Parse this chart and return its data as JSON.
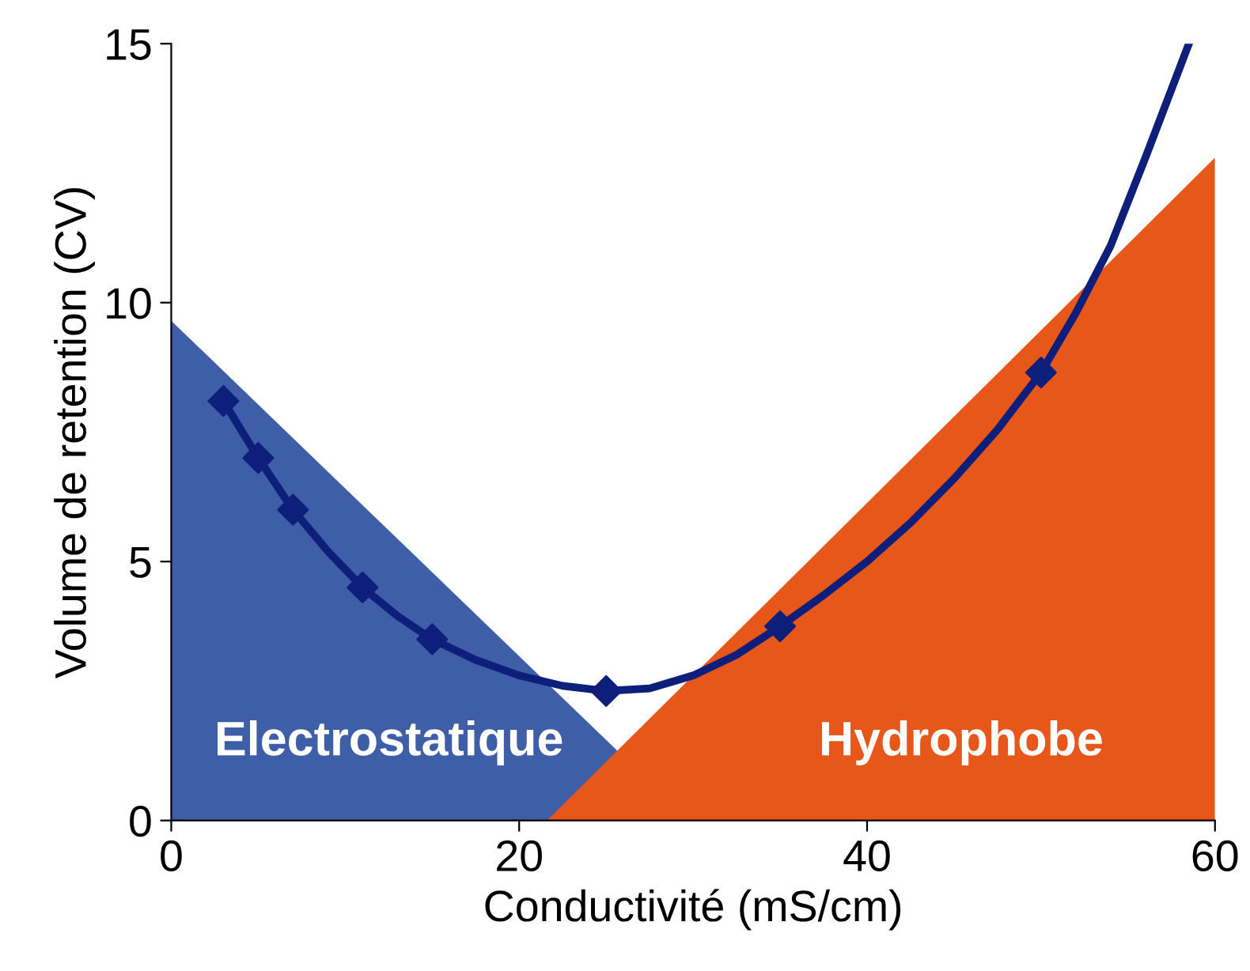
{
  "chart_data": {
    "type": "line",
    "xlabel": "Conductivité (mS/cm)",
    "ylabel": "Volume de retention (CV)",
    "xlim": [
      0,
      60
    ],
    "ylim": [
      0,
      15
    ],
    "xticks": [
      0,
      20,
      40,
      60
    ],
    "yticks": [
      0,
      5,
      10,
      15
    ],
    "grid": false,
    "legend": false,
    "series": [
      {
        "name": "Electrostatique",
        "type": "area",
        "color": "#3f5ea8",
        "x": [
          0,
          29.8
        ],
        "values": [
          9.65,
          0
        ]
      },
      {
        "name": "Hydrophobe",
        "type": "area",
        "color": "#e8571a",
        "x": [
          21.6,
          60
        ],
        "values": [
          0,
          12.8
        ]
      },
      {
        "color": "#0d1f7a",
        "marker": "none",
        "x": [
          3,
          5,
          7,
          9,
          11,
          13,
          15,
          17.5,
          20,
          22.5,
          25,
          27.5,
          30,
          32.5,
          35,
          37.5,
          40,
          42.5,
          45,
          47.5,
          50,
          52,
          54,
          56,
          58.5
        ],
        "values": [
          8.1,
          7.0,
          6.0,
          5.2,
          4.5,
          3.95,
          3.5,
          3.1,
          2.8,
          2.6,
          2.5,
          2.55,
          2.8,
          3.2,
          3.75,
          4.35,
          5.0,
          5.75,
          6.6,
          7.55,
          8.65,
          9.8,
          11.1,
          12.8,
          15
        ]
      },
      {
        "type": "scatter",
        "color": "#0d1f7a",
        "marker": "diamond",
        "x": [
          3,
          5,
          7,
          11,
          15,
          25,
          35,
          50
        ],
        "values": [
          8.1,
          7.0,
          6.0,
          4.5,
          3.5,
          2.5,
          3.75,
          8.65
        ]
      }
    ]
  }
}
